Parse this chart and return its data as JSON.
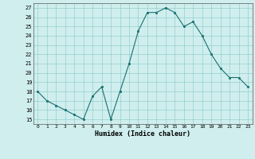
{
  "x": [
    0,
    1,
    2,
    3,
    4,
    5,
    6,
    7,
    8,
    9,
    10,
    11,
    12,
    13,
    14,
    15,
    16,
    17,
    18,
    19,
    20,
    21,
    22,
    23
  ],
  "y": [
    18,
    17,
    16.5,
    16,
    15.5,
    15,
    17.5,
    18.5,
    15,
    18,
    21,
    24.5,
    26.5,
    26.5,
    27,
    26.5,
    25,
    25.5,
    24,
    22,
    20.5,
    19.5,
    19.5,
    18.5
  ],
  "line_color": "#1a7070",
  "marker_color": "#1a7070",
  "bg_color": "#d0eeee",
  "grid_color": "#88c8c8",
  "xlabel": "Humidex (Indice chaleur)",
  "xlim": [
    -0.5,
    23.5
  ],
  "ylim": [
    14.5,
    27.5
  ],
  "yticks": [
    15,
    16,
    17,
    18,
    19,
    20,
    21,
    22,
    23,
    24,
    25,
    26,
    27
  ],
  "xticks": [
    0,
    1,
    2,
    3,
    4,
    5,
    6,
    7,
    8,
    9,
    10,
    11,
    12,
    13,
    14,
    15,
    16,
    17,
    18,
    19,
    20,
    21,
    22,
    23
  ]
}
